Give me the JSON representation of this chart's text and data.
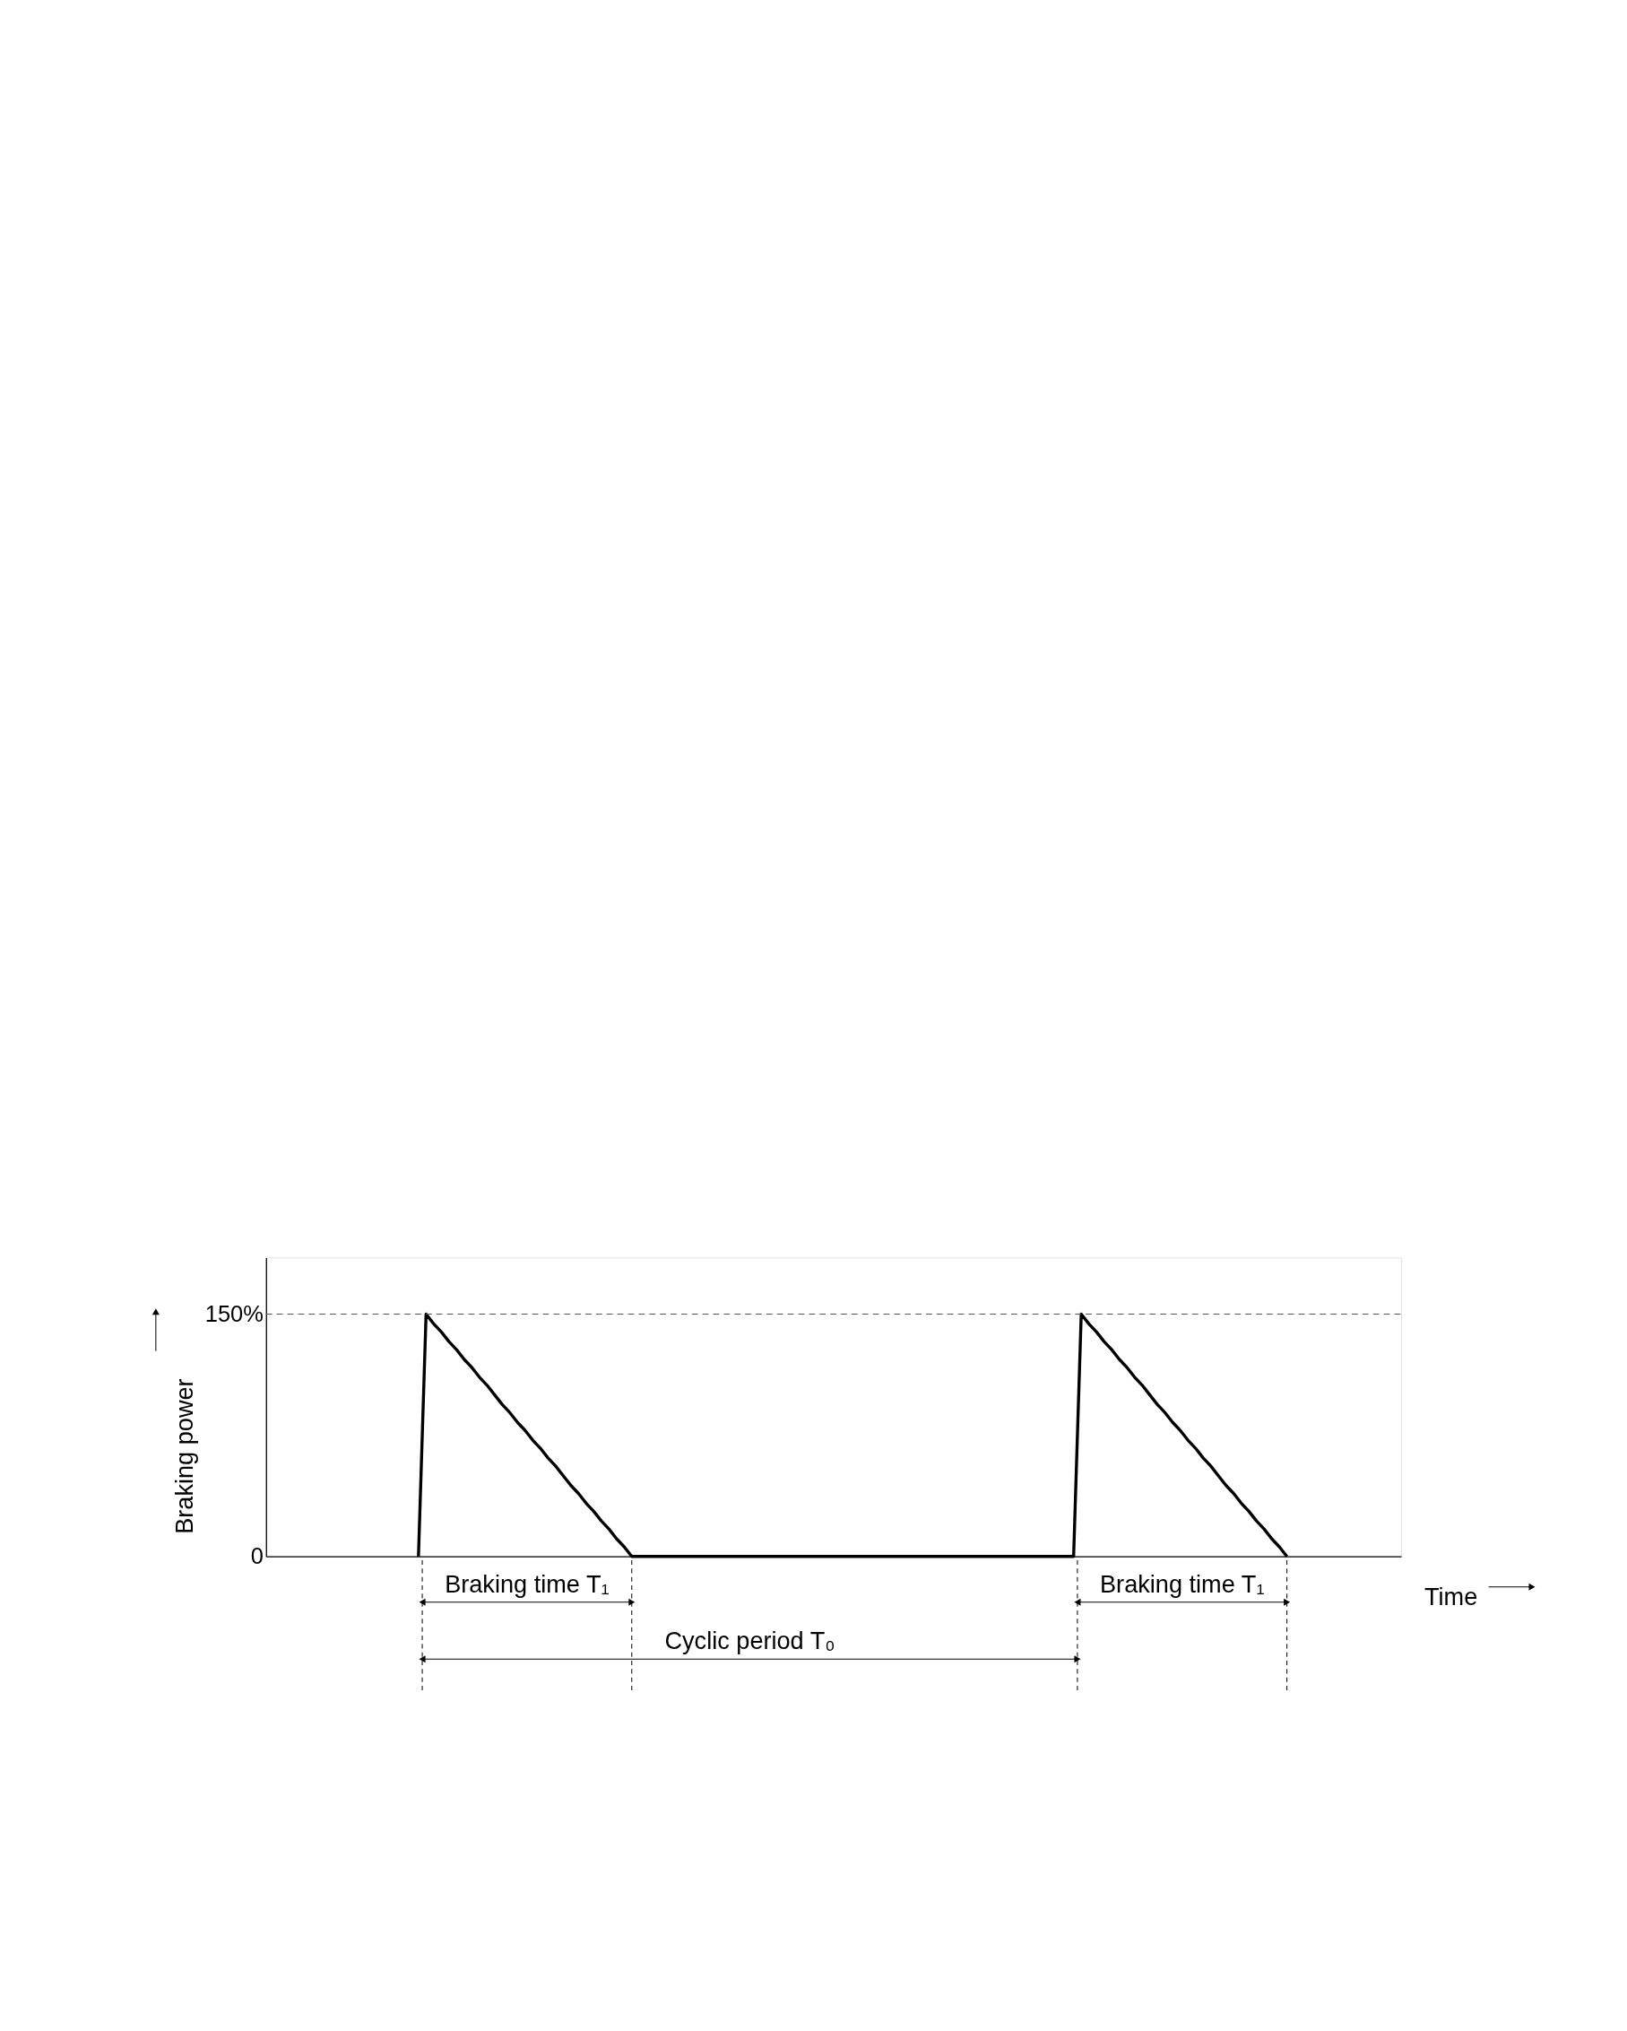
{
  "chart_data": {
    "type": "line",
    "ylabel": "Braking power",
    "xlabel": "Time",
    "categories": [
      null,
      null,
      null,
      null,
      null,
      null,
      null,
      null,
      null,
      null,
      null,
      null,
      null,
      null,
      null,
      null,
      null,
      null,
      null,
      null,
      null,
      null,
      null,
      null,
      null,
      null,
      null,
      null,
      null,
      null,
      null,
      null,
      null,
      null,
      null,
      null,
      null,
      null,
      null,
      null,
      null,
      null,
      null,
      null,
      null,
      null,
      null,
      null,
      null,
      null,
      null,
      null,
      null,
      null,
      null,
      null,
      null,
      null,
      null,
      null,
      null,
      null,
      null,
      null,
      null,
      null,
      null,
      null,
      null,
      null,
      null,
      null,
      null,
      null,
      null,
      null,
      null,
      null,
      null,
      null,
      null,
      null,
      null,
      null,
      null,
      null,
      null,
      null,
      null,
      null,
      null,
      null,
      null,
      null,
      null,
      null,
      null,
      null,
      null,
      null,
      null,
      null,
      null,
      null,
      null,
      null,
      null,
      null,
      null,
      null,
      null,
      null,
      null,
      null,
      null,
      null,
      null,
      null,
      null,
      null,
      null,
      null,
      null,
      null,
      null,
      null,
      null,
      null,
      null,
      null,
      null,
      null,
      null,
      null,
      null,
      null,
      null,
      null,
      null,
      null,
      null,
      null,
      null,
      null,
      null,
      null,
      null,
      null,
      null,
      null
    ],
    "series": [
      {
        "color": "#000000",
        "values": [
          null,
          null,
          null,
          null,
          null,
          null,
          null,
          null,
          null,
          null,
          null,
          null,
          null,
          null,
          null,
          null,
          null,
          null,
          null,
          null,
          0,
          150,
          144,
          139,
          133,
          128,
          122,
          117,
          111,
          106,
          100,
          94,
          89,
          83,
          78,
          72,
          67,
          61,
          56,
          50,
          44,
          39,
          33,
          28,
          22,
          17,
          11,
          6,
          0,
          0,
          0,
          0,
          0,
          0,
          0,
          0,
          0,
          0,
          0,
          0,
          0,
          0,
          0,
          0,
          0,
          0,
          0,
          0,
          0,
          0,
          0,
          0,
          0,
          0,
          0,
          0,
          0,
          0,
          0,
          0,
          0,
          0,
          0,
          0,
          0,
          0,
          0,
          0,
          0,
          0,
          0,
          0,
          0,
          0,
          0,
          0,
          0,
          0,
          0,
          0,
          0,
          0,
          0,
          0,
          0,
          0,
          0,
          150,
          144,
          139,
          133,
          128,
          122,
          117,
          111,
          106,
          100,
          94,
          89,
          83,
          78,
          72,
          67,
          61,
          56,
          50,
          44,
          39,
          33,
          28,
          22,
          17,
          11,
          6,
          0,
          null,
          null,
          null,
          null,
          null,
          null,
          null,
          null,
          null,
          null,
          null,
          null,
          null,
          null,
          null
        ]
      }
    ],
    "ylim": [
      0,
      185
    ],
    "yticks": [
      0,
      {
        "value": 150,
        "label": "150%"
      }
    ],
    "tick_labels": "y",
    "grid": false,
    "marker": "none",
    "line_style": "solid",
    "ref_lines": [
      {
        "axis": "y",
        "value": 150,
        "color": "#555555",
        "line_style": "dashed"
      }
    ],
    "annotations": [
      "Braking time T₁",
      "Braking time T₁",
      "Cyclic period T₀"
    ]
  }
}
